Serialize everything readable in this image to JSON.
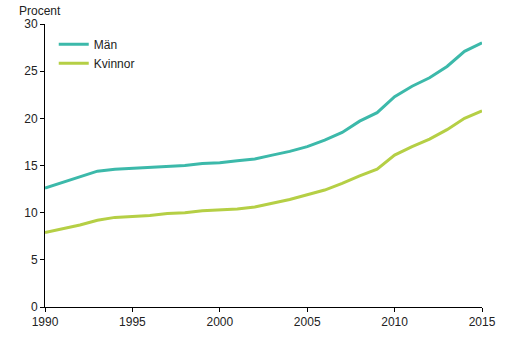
{
  "chart_data": {
    "type": "line",
    "y_label": "Procent",
    "x": [
      1990,
      1991,
      1992,
      1993,
      1994,
      1995,
      1996,
      1997,
      1998,
      1999,
      2000,
      2001,
      2002,
      2003,
      2004,
      2005,
      2006,
      2007,
      2008,
      2009,
      2010,
      2011,
      2012,
      2013,
      2014,
      2015
    ],
    "series": [
      {
        "name": "Män",
        "color": "#3cb9aa",
        "values": [
          12.6,
          13.2,
          13.8,
          14.4,
          14.6,
          14.7,
          14.8,
          14.9,
          15.0,
          15.2,
          15.3,
          15.5,
          15.7,
          16.1,
          16.5,
          17.0,
          17.7,
          18.5,
          19.7,
          20.6,
          22.3,
          23.4,
          24.3,
          25.5,
          27.1,
          28.0
        ]
      },
      {
        "name": "Kvinnor",
        "color": "#b5cf45",
        "values": [
          7.9,
          8.3,
          8.7,
          9.2,
          9.5,
          9.6,
          9.7,
          9.9,
          10.0,
          10.2,
          10.3,
          10.4,
          10.6,
          11.0,
          11.4,
          11.9,
          12.4,
          13.1,
          13.9,
          14.6,
          16.1,
          17.0,
          17.8,
          18.8,
          20.0,
          20.8
        ]
      }
    ],
    "xlim": [
      1990,
      2015
    ],
    "xticks": [
      1990,
      1995,
      2000,
      2005,
      2010,
      2015
    ],
    "ylim": [
      0,
      30
    ],
    "yticks": [
      0,
      5,
      10,
      15,
      20,
      25,
      30
    ],
    "grid": false,
    "legend": "top left"
  }
}
